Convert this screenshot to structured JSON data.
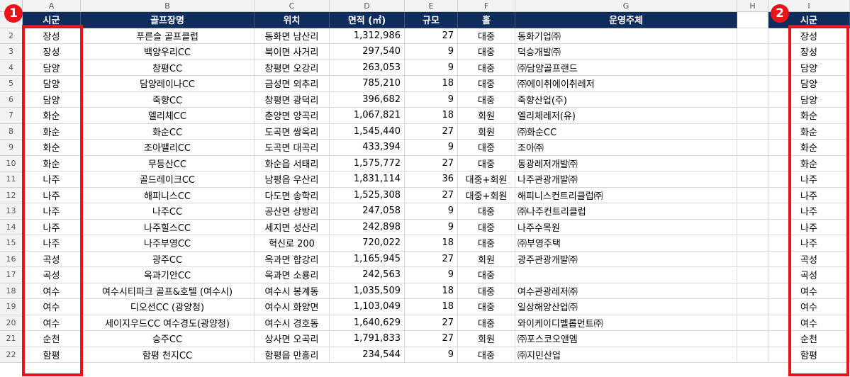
{
  "column_headers": [
    "A",
    "B",
    "C",
    "D",
    "E",
    "F",
    "G",
    "H",
    "I"
  ],
  "table": {
    "headers": [
      "시군",
      "골프장명",
      "위치",
      "면적 (㎡)",
      "규모",
      "홀",
      "운영주체"
    ],
    "rows": [
      [
        "장성",
        "푸른솔 골프클럽",
        "동화면 남산리",
        "1,312,986",
        "27",
        "대중",
        "동화기업㈜"
      ],
      [
        "장성",
        "백양우리CC",
        "북이면 사거리",
        "297,540",
        "9",
        "대중",
        "덕승개발㈜"
      ],
      [
        "담양",
        "창평CC",
        "창평면 오강리",
        "263,053",
        "9",
        "대중",
        "㈜담양골프랜드"
      ],
      [
        "담양",
        "담양레이나CC",
        "금성면 외추리",
        "785,210",
        "18",
        "대중",
        "㈜에이취에이취레저"
      ],
      [
        "담양",
        "죽향CC",
        "창평면 광덕리",
        "396,682",
        "9",
        "대중",
        "죽향산업(주)"
      ],
      [
        "화순",
        "엘리체CC",
        "춘양면 양곡리",
        "1,067,821",
        "18",
        "회원",
        "엘리체레저(유)"
      ],
      [
        "화순",
        "화순CC",
        "도곡면 쌍옥리",
        "1,545,440",
        "27",
        "회원",
        "㈜화순CC"
      ],
      [
        "화순",
        "조아밸리CC",
        "도곡면 대곡리",
        "433,394",
        "9",
        "대중",
        "조아㈜"
      ],
      [
        "화순",
        "무등산CC",
        "화순읍 서태리",
        "1,575,772",
        "27",
        "대중",
        "동광레저개발㈜"
      ],
      [
        "나주",
        "골드레이크CC",
        "남평읍 우산리",
        "1,831,114",
        "36",
        "대중+회원",
        "나주관광개발㈜"
      ],
      [
        "나주",
        "해피니스CC",
        "다도면 송학리",
        "1,525,308",
        "27",
        "대중+회원",
        "해피니스컨트리클럽㈜"
      ],
      [
        "나주",
        "나주CC",
        "공산면 상방리",
        "247,058",
        "9",
        "대중",
        "㈜나주컨트리클럽"
      ],
      [
        "나주",
        "나주힐스CC",
        "세지면 성산리",
        "242,898",
        "9",
        "대중",
        "나주수목원"
      ],
      [
        "나주",
        "나주부영CC",
        "혁신로 200",
        "720,022",
        "18",
        "대중",
        "㈜부영주택"
      ],
      [
        "곡성",
        "광주CC",
        "옥과면 합강리",
        "1,165,945",
        "27",
        "회원",
        "광주관광개발㈜"
      ],
      [
        "곡성",
        "옥과기안CC",
        "옥과면 소룡리",
        "242,563",
        "9",
        "대중",
        ""
      ],
      [
        "여수",
        "여수시티파크 골프&호텔 (여수시)",
        "여수시 봉계동",
        "1,035,509",
        "18",
        "대중",
        "여수관광레저㈜"
      ],
      [
        "여수",
        "디오션CC (광양청)",
        "여수시 화양면",
        "1,103,049",
        "18",
        "대중",
        "일상해양산업㈜"
      ],
      [
        "여수",
        "세이지우드CC 여수경도(광양청)",
        "여수시 경호동",
        "1,640,629",
        "27",
        "대중",
        "와이케이디벨롭먼트㈜"
      ],
      [
        "순천",
        "승주CC",
        "상사면 오곡리",
        "1,791,833",
        "27",
        "회원",
        "㈜포스코오앤엠"
      ],
      [
        "함평",
        "함평 천지CC",
        "함평읍 만흥리",
        "234,544",
        "9",
        "대중",
        "㈜지민산업"
      ]
    ]
  },
  "column_i": {
    "header": "시군",
    "values": [
      "장성",
      "장성",
      "담양",
      "담양",
      "담양",
      "화순",
      "화순",
      "화순",
      "화순",
      "나주",
      "나주",
      "나주",
      "나주",
      "나주",
      "곡성",
      "곡성",
      "여수",
      "여수",
      "여수",
      "순천",
      "함평"
    ]
  },
  "annotations": {
    "badge_1": "1",
    "badge_2": "2",
    "color": "#e8141a"
  },
  "colors": {
    "header_bg": "#0f2d5c",
    "header_text": "#ffffff"
  }
}
